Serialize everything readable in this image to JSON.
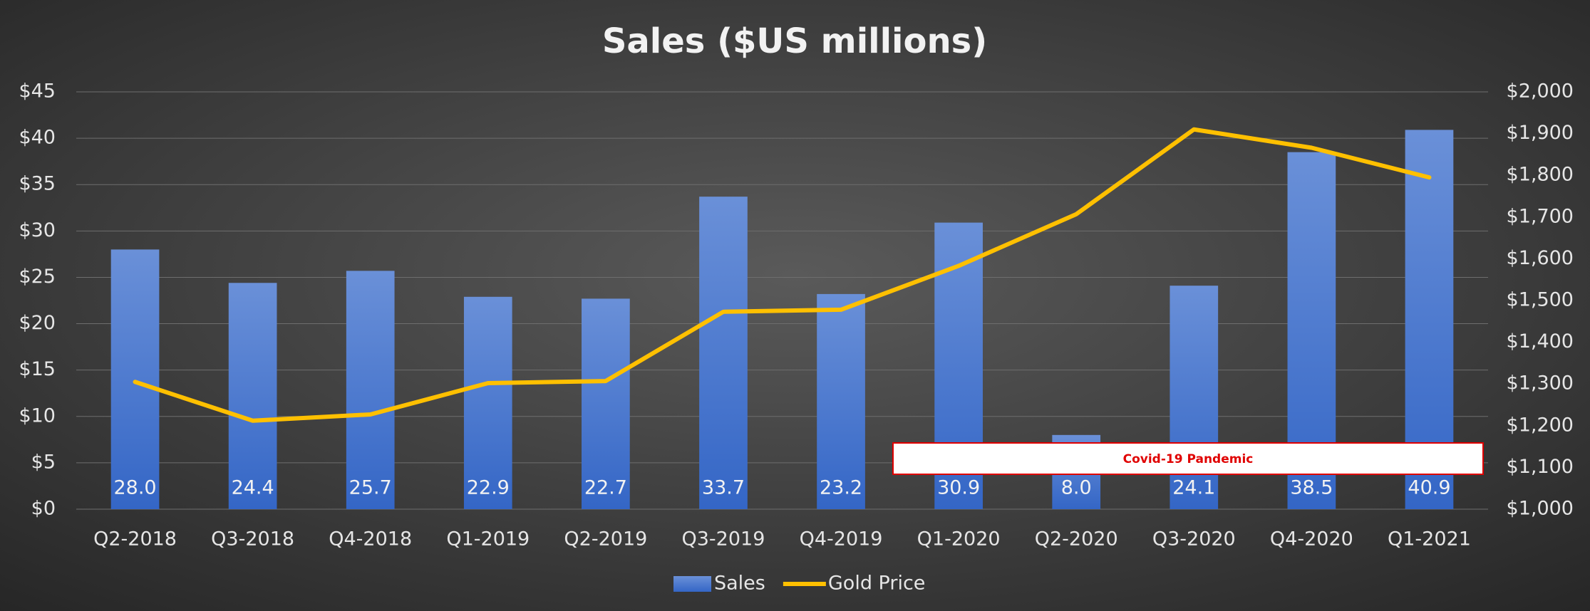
{
  "chart_data": {
    "type": "bar_line",
    "title": "Sales ($US millions)",
    "categories": [
      "Q2-2018",
      "Q3-2018",
      "Q4-2018",
      "Q1-2019",
      "Q2-2019",
      "Q3-2019",
      "Q4-2019",
      "Q1-2020",
      "Q2-2020",
      "Q3-2020",
      "Q4-2020",
      "Q1-2021"
    ],
    "series": [
      {
        "name": "Sales",
        "type": "bar",
        "color": "#4a78d0",
        "values": [
          28.0,
          24.4,
          25.7,
          22.9,
          22.7,
          33.7,
          23.2,
          30.9,
          8.0,
          24.1,
          38.5,
          40.9
        ],
        "value_labels": [
          "28.0",
          "24.4",
          "25.7",
          "22.9",
          "22.7",
          "33.7",
          "23.2",
          "30.9",
          "8.0",
          "24.1",
          "38.5",
          "40.9"
        ]
      },
      {
        "name": "Gold Price",
        "type": "line",
        "axis": "y2",
        "color": "#ffc000",
        "values": [
          1305,
          1212,
          1227,
          1302,
          1307,
          1473,
          1478,
          1583,
          1707,
          1910,
          1866,
          1795
        ]
      }
    ],
    "ylim": [
      0,
      45
    ],
    "yticks": [
      {
        "value": 0,
        "label": "$0"
      },
      {
        "value": 5,
        "label": "$5"
      },
      {
        "value": 10,
        "label": "$10"
      },
      {
        "value": 15,
        "label": "$15"
      },
      {
        "value": 20,
        "label": "$20"
      },
      {
        "value": 25,
        "label": "$25"
      },
      {
        "value": 30,
        "label": "$30"
      },
      {
        "value": 35,
        "label": "$35"
      },
      {
        "value": 40,
        "label": "$40"
      },
      {
        "value": 45,
        "label": "$45"
      }
    ],
    "y2lim": [
      1000,
      2000
    ],
    "y2ticks": [
      {
        "value": 1000,
        "label": "$1,000"
      },
      {
        "value": 1100,
        "label": "$1,100"
      },
      {
        "value": 1200,
        "label": "$1,200"
      },
      {
        "value": 1300,
        "label": "$1,300"
      },
      {
        "value": 1400,
        "label": "$1,400"
      },
      {
        "value": 1500,
        "label": "$1,500"
      },
      {
        "value": 1600,
        "label": "$1,600"
      },
      {
        "value": 1700,
        "label": "$1,700"
      },
      {
        "value": 1800,
        "label": "$1,800"
      },
      {
        "value": 1900,
        "label": "$1,900"
      },
      {
        "value": 2000,
        "label": "$2,000"
      }
    ],
    "grid": true,
    "legend": "bottom",
    "annotation": "Covid-19 Pandemic"
  }
}
